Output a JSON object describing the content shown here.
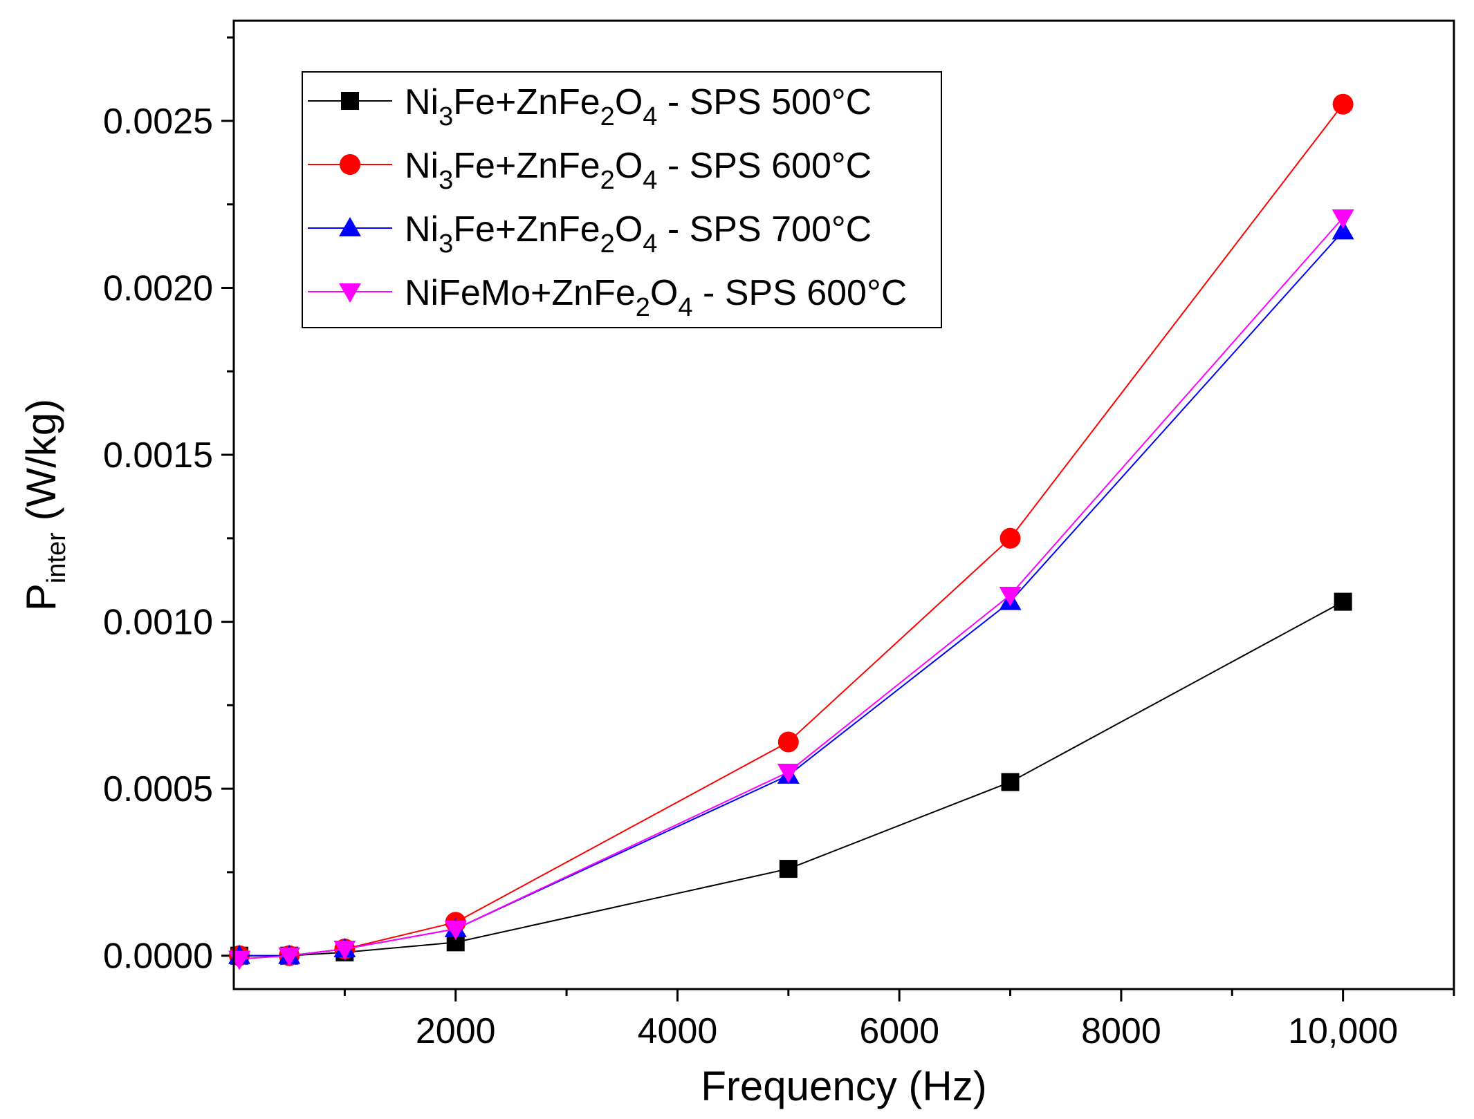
{
  "chart_data": {
    "type": "line",
    "title": "",
    "xlabel": "Frequency (Hz)",
    "ylabel": {
      "main": "P",
      "sub": "inter",
      "unit": " (W/kg)"
    },
    "xlim": [
      0,
      11000
    ],
    "ylim": [
      -0.0001,
      0.0028
    ],
    "x_ticks": [
      {
        "value": 2000,
        "label": "2000"
      },
      {
        "value": 4000,
        "label": "4000"
      },
      {
        "value": 6000,
        "label": "6000"
      },
      {
        "value": 8000,
        "label": "8000"
      },
      {
        "value": 10000,
        "label": "10,000"
      }
    ],
    "x_minor_ticks": [
      1000,
      3000,
      5000,
      7000,
      9000,
      11000
    ],
    "y_ticks": [
      {
        "value": 0.0,
        "label": "0.0000"
      },
      {
        "value": 0.0005,
        "label": "0.0005"
      },
      {
        "value": 0.001,
        "label": "0.0010"
      },
      {
        "value": 0.0015,
        "label": "0.0015"
      },
      {
        "value": 0.002,
        "label": "0.0020"
      },
      {
        "value": 0.0025,
        "label": "0.0025"
      }
    ],
    "y_minor_ticks": [
      0.00025,
      0.00075,
      0.00125,
      0.00175,
      0.00225,
      0.00275
    ],
    "x": [
      50,
      500,
      1000,
      2000,
      5000,
      7000,
      10000
    ],
    "legend_position": "top-left",
    "series": [
      {
        "name": "Ni3Fe+ZnFe2O4 - SPS 500°C",
        "label_parts": [
          {
            "t": "Ni",
            "sub": false
          },
          {
            "t": "3",
            "sub": true
          },
          {
            "t": "Fe+ZnFe",
            "sub": false
          },
          {
            "t": "2",
            "sub": true
          },
          {
            "t": "O",
            "sub": false
          },
          {
            "t": "4",
            "sub": true
          },
          {
            "t": " - SPS 500°C",
            "sub": false
          }
        ],
        "color": "#000000",
        "marker": "square",
        "values": [
          0.0,
          0.0,
          1e-05,
          4e-05,
          0.00026,
          0.00052,
          0.00106
        ]
      },
      {
        "name": "Ni3Fe+ZnFe2O4 - SPS 600°C",
        "label_parts": [
          {
            "t": "Ni",
            "sub": false
          },
          {
            "t": "3",
            "sub": true
          },
          {
            "t": "Fe+ZnFe",
            "sub": false
          },
          {
            "t": "2",
            "sub": true
          },
          {
            "t": "O",
            "sub": false
          },
          {
            "t": "4",
            "sub": true
          },
          {
            "t": " - SPS 600°C",
            "sub": false
          }
        ],
        "color": "#ff0000",
        "marker": "circle",
        "values": [
          0.0,
          0.0,
          2e-05,
          0.0001,
          0.00064,
          0.00125,
          0.00255
        ]
      },
      {
        "name": "Ni3Fe+ZnFe2O4 - SPS 700°C",
        "label_parts": [
          {
            "t": "Ni",
            "sub": false
          },
          {
            "t": "3",
            "sub": true
          },
          {
            "t": "Fe+ZnFe",
            "sub": false
          },
          {
            "t": "2",
            "sub": true
          },
          {
            "t": "O",
            "sub": false
          },
          {
            "t": "4",
            "sub": true
          },
          {
            "t": " - SPS 700°C",
            "sub": false
          }
        ],
        "color": "#0000ff",
        "marker": "triangle-up",
        "values": [
          0.0,
          0.0,
          2e-05,
          8e-05,
          0.00054,
          0.00106,
          0.00217
        ]
      },
      {
        "name": "NiFeMo+ZnFe2O4 - SPS 600°C",
        "label_parts": [
          {
            "t": "NiFeMo+ZnFe",
            "sub": false
          },
          {
            "t": "2",
            "sub": true
          },
          {
            "t": "O",
            "sub": false
          },
          {
            "t": "4",
            "sub": true
          },
          {
            "t": " - SPS 600°C",
            "sub": false
          }
        ],
        "color": "#ff00ff",
        "marker": "triangle-down",
        "values": [
          -1e-05,
          0.0,
          2e-05,
          8e-05,
          0.00055,
          0.00108,
          0.00221
        ]
      }
    ]
  }
}
